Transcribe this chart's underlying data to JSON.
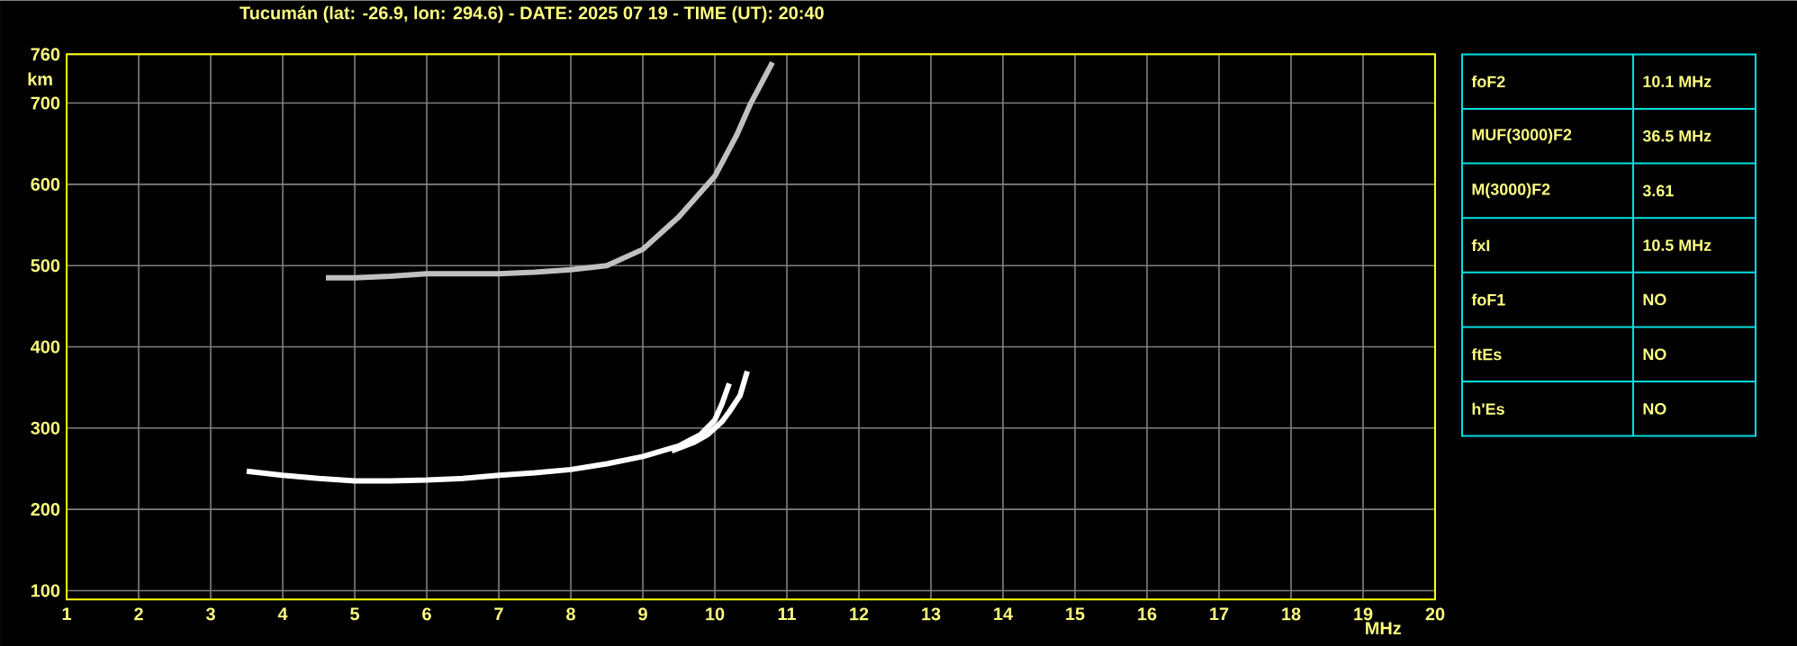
{
  "chart_data": [
    {
      "type": "line",
      "title": "Tucumán (lat: -26.9, lon: 294.6) - DATE: 2025 07 19 - TIME (UT): 20:40",
      "xlabel": "MHz",
      "ylabel": "km",
      "series": [
        {
          "color": "#ffffff",
          "x": [
            3.5,
            4,
            4.5,
            5,
            5.5,
            6,
            6.5,
            7,
            7.5,
            8,
            8.5,
            9,
            9.5,
            9.8,
            10.0,
            10.1,
            10.2
          ],
          "values": [
            247,
            242,
            238,
            235,
            235,
            236,
            238,
            242,
            245,
            249,
            256,
            265,
            278,
            292,
            310,
            330,
            355
          ]
        },
        {
          "color": "#ffffff",
          "x": [
            9.4,
            9.7,
            9.9,
            10.1,
            10.2,
            10.35,
            10.45
          ],
          "values": [
            272,
            282,
            292,
            308,
            320,
            340,
            370
          ]
        },
        {
          "color": "#c0c0c0",
          "x": [
            4.6,
            5,
            5.5,
            6,
            6.5,
            7,
            7.5,
            8,
            8.5,
            9,
            9.5,
            10,
            10.3,
            10.5,
            10.8
          ],
          "values": [
            485,
            485,
            487,
            490,
            490,
            490,
            492,
            495,
            500,
            520,
            560,
            610,
            660,
            700,
            750
          ]
        }
      ],
      "xlim": [
        1,
        20
      ],
      "ylim": [
        89,
        760
      ],
      "xticks": [
        1,
        2,
        3,
        4,
        5,
        6,
        7,
        8,
        9,
        10,
        11,
        12,
        13,
        14,
        15,
        16,
        17,
        18,
        19,
        20
      ],
      "yticks": [
        100,
        200,
        300,
        400,
        500,
        600,
        700,
        760
      ],
      "grid": true
    },
    {
      "type": "other",
      "categories": [
        "foF2",
        "MUF(3000)F2",
        "M(3000)F2",
        "fxI",
        "foF1",
        "ftEs",
        "h'Es"
      ],
      "annotations": [
        "10.1 MHz",
        "36.5 MHz",
        "3.61",
        "10.5 MHz",
        "NO",
        "NO",
        "NO"
      ]
    }
  ]
}
